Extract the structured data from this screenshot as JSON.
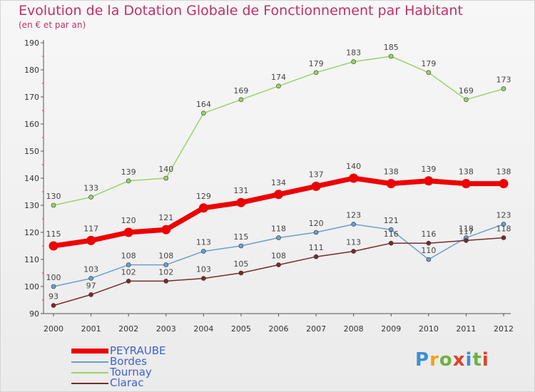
{
  "header": {
    "title": "Evolution de la Dotation Globale de Fonctionnement par Habitant",
    "subtitle": "(en € et par an)"
  },
  "logo": {
    "text": "Proxiti",
    "colors": [
      "#3b8fd6",
      "#f0a11a",
      "#6cb33f",
      "#e2402b",
      "#3b8fd6",
      "#6cb33f",
      "#e2402b"
    ]
  },
  "chart_data": {
    "type": "line",
    "title": "Evolution de la Dotation Globale de Fonctionnement par Habitant",
    "subtitle": "(en € et par an)",
    "x": [
      "2000",
      "2001",
      "2002",
      "2003",
      "2004",
      "2005",
      "2006",
      "2007",
      "2008",
      "2009",
      "2010",
      "2011",
      "2012"
    ],
    "ylim": [
      90,
      190
    ],
    "yticks": [
      90,
      100,
      110,
      120,
      130,
      140,
      150,
      160,
      170,
      180,
      190
    ],
    "grid": false,
    "legend": "bottom-left",
    "series": [
      {
        "name": "PEYRAUBE",
        "color": "#ee0000",
        "emphasis": true,
        "values": [
          115,
          117,
          120,
          121,
          129,
          131,
          134,
          137,
          140,
          138,
          139,
          138,
          138
        ]
      },
      {
        "name": "Bordes",
        "color": "#6c9fd0",
        "emphasis": false,
        "values": [
          100,
          103,
          108,
          108,
          113,
          115,
          118,
          120,
          123,
          121,
          110,
          118,
          123
        ]
      },
      {
        "name": "Tournay",
        "color": "#9ad36a",
        "emphasis": false,
        "values": [
          130,
          133,
          139,
          140,
          164,
          169,
          174,
          179,
          183,
          185,
          179,
          169,
          173
        ]
      },
      {
        "name": "Clarac",
        "color": "#7a2a2a",
        "emphasis": false,
        "values": [
          93,
          97,
          102,
          102,
          103,
          105,
          108,
          111,
          113,
          116,
          116,
          117,
          118
        ]
      }
    ]
  }
}
